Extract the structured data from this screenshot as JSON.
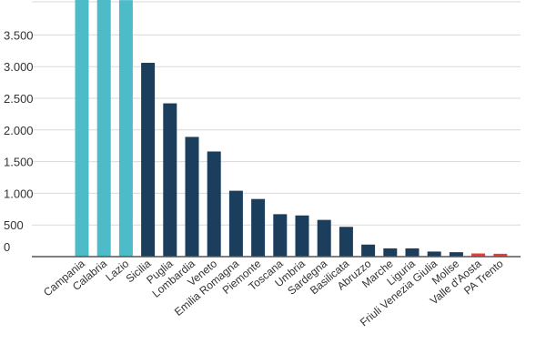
{
  "chart_data": {
    "type": "bar",
    "categories": [
      "Campania",
      "Calabria",
      "Lazio",
      "Sicilia",
      "Puglia",
      "Lombardia",
      "Veneto",
      "Emilia Romagna",
      "Piemonte",
      "Toscana",
      "Umbria",
      "Sardegna",
      "Basilicata",
      "Abruzzo",
      "Marche",
      "Liguria",
      "Friuli Venezia Giulia",
      "Molise",
      "Valle d'Aosta",
      "PA Trento"
    ],
    "values": [
      4200,
      4150,
      4050,
      3060,
      2420,
      1890,
      1660,
      1040,
      910,
      670,
      650,
      580,
      470,
      190,
      130,
      130,
      80,
      70,
      50,
      45
    ],
    "bar_colors": [
      "#4dbcc8",
      "#4dbcc8",
      "#4dbcc8",
      "#1b3e5d",
      "#1b3e5d",
      "#1b3e5d",
      "#1b3e5d",
      "#1b3e5d",
      "#1b3e5d",
      "#1b3e5d",
      "#1b3e5d",
      "#1b3e5d",
      "#1b3e5d",
      "#1b3e5d",
      "#1b3e5d",
      "#1b3e5d",
      "#1b3e5d",
      "#1b3e5d",
      "#e0403c",
      "#e0403c"
    ],
    "yticks": [
      0,
      500,
      1000,
      1500,
      2000,
      2500,
      3000,
      3500
    ],
    "ytick_labels": [
      "0",
      "500",
      "1.000",
      "1.500",
      "2.000",
      "2.500",
      "3.000",
      "3.500"
    ],
    "ylim": [
      0,
      4100
    ],
    "grid": true,
    "title": "",
    "xlabel": "",
    "ylabel": ""
  }
}
